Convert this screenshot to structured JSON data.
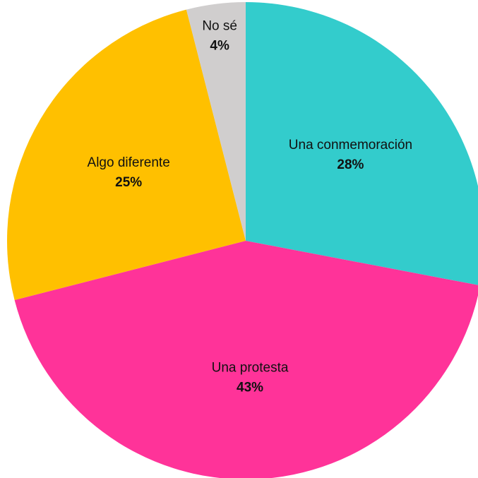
{
  "chart_data": {
    "type": "pie",
    "categories": [
      "Una conmemoración",
      "Una protesta",
      "Algo diferente",
      "No sé"
    ],
    "values": [
      28,
      43,
      25,
      4
    ],
    "value_labels": [
      "28%",
      "43%",
      "25%",
      "4%"
    ],
    "colors": [
      "#33cccc",
      "#ff3399",
      "#ffc000",
      "#d0cece"
    ]
  }
}
